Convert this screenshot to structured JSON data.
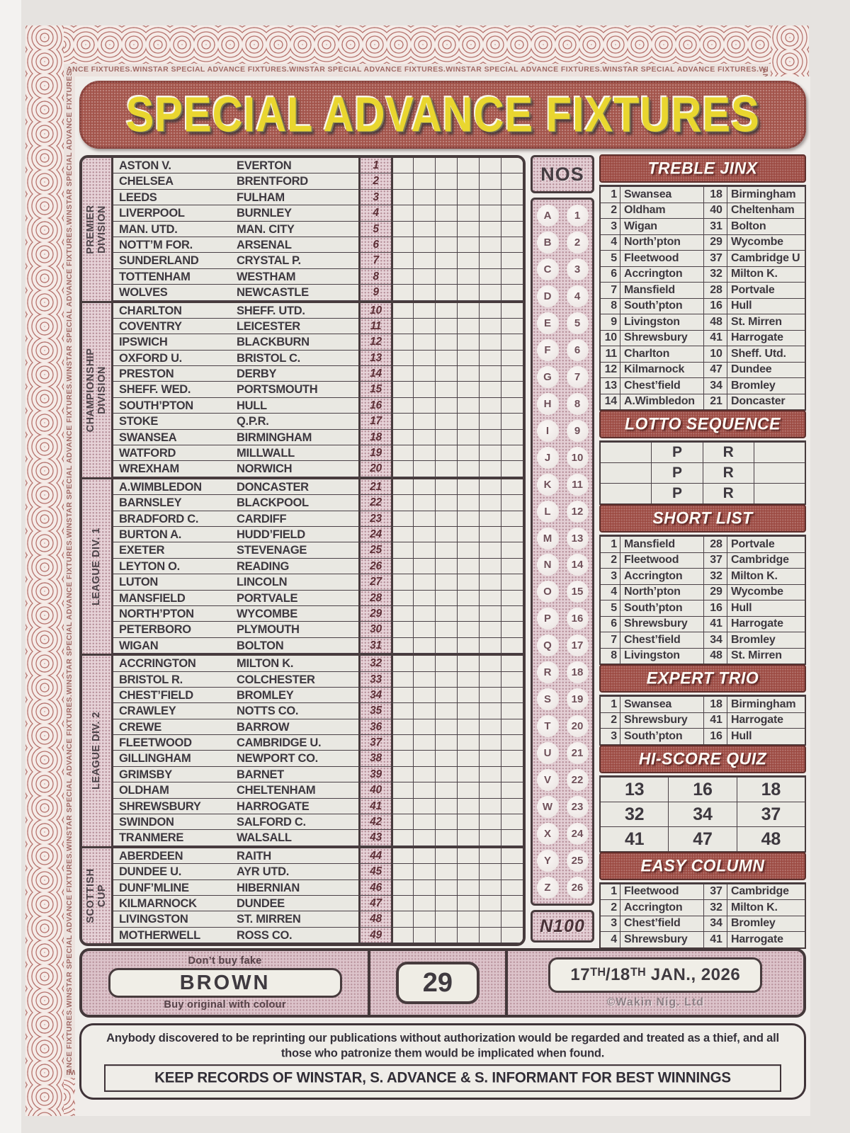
{
  "page": {
    "title": "SPECIAL ADVANCE FIXTURES",
    "border_text": "ANCE FIXTURES.WINSTAR SPECIAL ADVANCE FIXTURES.WINSTAR SPECIAL ADVANCE FIXTURES.WINSTAR SPECIAL ADVANCE FIXTURES.WINSTAR SPECIAL ADVANCE FIXTURES.WINSTAR SPECIAL ADVANCE FIXTURES.WINSTAR SPECIAL ADVANCE FIXTURES.WINSTAR SPE.IAL"
  },
  "fixtures": {
    "nos_header": "NOS",
    "coupon_code": "N100",
    "divisions": [
      {
        "label": "PREMIER\nDIVISION",
        "rows": [
          {
            "no": "1",
            "home": "ASTON V.",
            "away": "EVERTON"
          },
          {
            "no": "2",
            "home": "CHELSEA",
            "away": "BRENTFORD"
          },
          {
            "no": "3",
            "home": "LEEDS",
            "away": "FULHAM"
          },
          {
            "no": "4",
            "home": "LIVERPOOL",
            "away": "BURNLEY"
          },
          {
            "no": "5",
            "home": "MAN. UTD.",
            "away": "MAN. CITY"
          },
          {
            "no": "6",
            "home": "NOTT’M FOR.",
            "away": "ARSENAL"
          },
          {
            "no": "7",
            "home": "SUNDERLAND",
            "away": "CRYSTAL P."
          },
          {
            "no": "8",
            "home": "TOTTENHAM",
            "away": "WESTHAM"
          },
          {
            "no": "9",
            "home": "WOLVES",
            "away": "NEWCASTLE"
          }
        ]
      },
      {
        "label": "CHAMPIONSHIP\nDIVISION",
        "rows": [
          {
            "no": "10",
            "home": "CHARLTON",
            "away": "SHEFF. UTD."
          },
          {
            "no": "11",
            "home": "COVENTRY",
            "away": "LEICESTER"
          },
          {
            "no": "12",
            "home": "IPSWICH",
            "away": "BLACKBURN"
          },
          {
            "no": "13",
            "home": "OXFORD U.",
            "away": "BRISTOL C."
          },
          {
            "no": "14",
            "home": "PRESTON",
            "away": "DERBY"
          },
          {
            "no": "15",
            "home": "SHEFF. WED.",
            "away": "PORTSMOUTH"
          },
          {
            "no": "16",
            "home": "SOUTH’PTON",
            "away": "HULL"
          },
          {
            "no": "17",
            "home": "STOKE",
            "away": "Q.P.R."
          },
          {
            "no": "18",
            "home": "SWANSEA",
            "away": "BIRMINGHAM"
          },
          {
            "no": "19",
            "home": "WATFORD",
            "away": "MILLWALL"
          },
          {
            "no": "20",
            "home": "WREXHAM",
            "away": "NORWICH"
          }
        ]
      },
      {
        "label": "LEAGUE DIV. 1",
        "rows": [
          {
            "no": "21",
            "home": "A.WIMBLEDON",
            "away": "DONCASTER"
          },
          {
            "no": "22",
            "home": "BARNSLEY",
            "away": "BLACKPOOL"
          },
          {
            "no": "23",
            "home": "BRADFORD C.",
            "away": "CARDIFF"
          },
          {
            "no": "24",
            "home": "BURTON A.",
            "away": "HUDD’FIELD"
          },
          {
            "no": "25",
            "home": "EXETER",
            "away": "STEVENAGE"
          },
          {
            "no": "26",
            "home": "LEYTON O.",
            "away": "READING"
          },
          {
            "no": "27",
            "home": "LUTON",
            "away": "LINCOLN"
          },
          {
            "no": "28",
            "home": "MANSFIELD",
            "away": "PORTVALE"
          },
          {
            "no": "29",
            "home": "NORTH’PTON",
            "away": "WYCOMBE"
          },
          {
            "no": "30",
            "home": "PETERBORO",
            "away": "PLYMOUTH"
          },
          {
            "no": "31",
            "home": "WIGAN",
            "away": "BOLTON"
          }
        ]
      },
      {
        "label": "LEAGUE DIV. 2",
        "rows": [
          {
            "no": "32",
            "home": "ACCRINGTON",
            "away": "MILTON K."
          },
          {
            "no": "33",
            "home": "BRISTOL R.",
            "away": "COLCHESTER"
          },
          {
            "no": "34",
            "home": "CHEST’FIELD",
            "away": "BROMLEY"
          },
          {
            "no": "35",
            "home": "CRAWLEY",
            "away": "NOTTS CO."
          },
          {
            "no": "36",
            "home": "CREWE",
            "away": "BARROW"
          },
          {
            "no": "37",
            "home": "FLEETWOOD",
            "away": "CAMBRIDGE U."
          },
          {
            "no": "38",
            "home": "GILLINGHAM",
            "away": "NEWPORT CO."
          },
          {
            "no": "39",
            "home": "GRIMSBY",
            "away": "BARNET"
          },
          {
            "no": "40",
            "home": "OLDHAM",
            "away": "CHELTENHAM"
          },
          {
            "no": "41",
            "home": "SHREWSBURY",
            "away": "HARROGATE"
          },
          {
            "no": "42",
            "home": "SWINDON",
            "away": "SALFORD C."
          },
          {
            "no": "43",
            "home": "TRANMERE",
            "away": "WALSALL"
          }
        ]
      },
      {
        "label": "SCOTTISH\nCUP",
        "rows": [
          {
            "no": "44",
            "home": "ABERDEEN",
            "away": "RAITH"
          },
          {
            "no": "45",
            "home": "DUNDEE U.",
            "away": "AYR UTD."
          },
          {
            "no": "46",
            "home": "DUNF’MLINE",
            "away": "HIBERNIAN"
          },
          {
            "no": "47",
            "home": "KILMARNOCK",
            "away": "DUNDEE"
          },
          {
            "no": "48",
            "home": "LIVINGSTON",
            "away": "ST. MIRREN"
          },
          {
            "no": "49",
            "home": "MOTHERWELL",
            "away": "ROSS CO."
          }
        ]
      }
    ],
    "letters": [
      {
        "l": "A",
        "n": "1"
      },
      {
        "l": "B",
        "n": "2"
      },
      {
        "l": "C",
        "n": "3"
      },
      {
        "l": "D",
        "n": "4"
      },
      {
        "l": "E",
        "n": "5"
      },
      {
        "l": "F",
        "n": "6"
      },
      {
        "l": "G",
        "n": "7"
      },
      {
        "l": "H",
        "n": "8"
      },
      {
        "l": "I",
        "n": "9"
      },
      {
        "l": "J",
        "n": "10"
      },
      {
        "l": "K",
        "n": "11"
      },
      {
        "l": "L",
        "n": "12"
      },
      {
        "l": "M",
        "n": "13"
      },
      {
        "l": "N",
        "n": "14"
      },
      {
        "l": "O",
        "n": "15"
      },
      {
        "l": "P",
        "n": "16"
      },
      {
        "l": "Q",
        "n": "17"
      },
      {
        "l": "R",
        "n": "18"
      },
      {
        "l": "S",
        "n": "19"
      },
      {
        "l": "T",
        "n": "20"
      },
      {
        "l": "U",
        "n": "21"
      },
      {
        "l": "V",
        "n": "22"
      },
      {
        "l": "W",
        "n": "23"
      },
      {
        "l": "X",
        "n": "24"
      },
      {
        "l": "Y",
        "n": "25"
      },
      {
        "l": "Z",
        "n": "26"
      }
    ]
  },
  "panel": {
    "treble_jinx": {
      "title": "TREBLE JINX",
      "rows": [
        {
          "n": "1",
          "home": "Swansea",
          "x": "18",
          "away": "Birmingham"
        },
        {
          "n": "2",
          "home": "Oldham",
          "x": "40",
          "away": "Cheltenham"
        },
        {
          "n": "3",
          "home": "Wigan",
          "x": "31",
          "away": "Bolton"
        },
        {
          "n": "4",
          "home": "North’pton",
          "x": "29",
          "away": "Wycombe"
        },
        {
          "n": "5",
          "home": "Fleetwood",
          "x": "37",
          "away": "Cambridge U"
        },
        {
          "n": "6",
          "home": "Accrington",
          "x": "32",
          "away": "Milton K."
        },
        {
          "n": "7",
          "home": "Mansfield",
          "x": "28",
          "away": "Portvale"
        },
        {
          "n": "8",
          "home": "South’pton",
          "x": "16",
          "away": "Hull"
        },
        {
          "n": "9",
          "home": "Livingston",
          "x": "48",
          "away": "St. Mirren"
        },
        {
          "n": "10",
          "home": "Shrewsbury",
          "x": "41",
          "away": "Harrogate"
        },
        {
          "n": "11",
          "home": "Charlton",
          "x": "10",
          "away": "Sheff. Utd."
        },
        {
          "n": "12",
          "home": "Kilmarnock",
          "x": "47",
          "away": "Dundee"
        },
        {
          "n": "13",
          "home": "Chest’field",
          "x": "34",
          "away": "Bromley"
        },
        {
          "n": "14",
          "home": "A.Wimbledon",
          "x": "21",
          "away": "Doncaster"
        }
      ]
    },
    "lotto_sequence": {
      "title": "LOTTO SEQUENCE",
      "rows": [
        {
          "a": "",
          "p": "P",
          "r": "R",
          "b": ""
        },
        {
          "a": "",
          "p": "P",
          "r": "R",
          "b": ""
        },
        {
          "a": "",
          "p": "P",
          "r": "R",
          "b": ""
        }
      ]
    },
    "short_list": {
      "title": "SHORT LIST",
      "rows": [
        {
          "n": "1",
          "home": "Mansfield",
          "x": "28",
          "away": "Portvale"
        },
        {
          "n": "2",
          "home": "Fleetwood",
          "x": "37",
          "away": "Cambridge"
        },
        {
          "n": "3",
          "home": "Accrington",
          "x": "32",
          "away": "Milton K."
        },
        {
          "n": "4",
          "home": "North’pton",
          "x": "29",
          "away": "Wycombe"
        },
        {
          "n": "5",
          "home": "South’pton",
          "x": "16",
          "away": "Hull"
        },
        {
          "n": "6",
          "home": "Shrewsbury",
          "x": "41",
          "away": "Harrogate"
        },
        {
          "n": "7",
          "home": "Chest’field",
          "x": "34",
          "away": "Bromley"
        },
        {
          "n": "8",
          "home": "Livingston",
          "x": "48",
          "away": "St. Mirren"
        }
      ]
    },
    "expert_trio": {
      "title": "EXPERT TRIO",
      "rows": [
        {
          "n": "1",
          "home": "Swansea",
          "x": "18",
          "away": "Birmingham"
        },
        {
          "n": "2",
          "home": "Shrewsbury",
          "x": "41",
          "away": "Harrogate"
        },
        {
          "n": "3",
          "home": "South’pton",
          "x": "16",
          "away": "Hull"
        }
      ]
    },
    "hi_score_quiz": {
      "title": "HI-SCORE QUIZ",
      "rows": [
        [
          "13",
          "16",
          "18"
        ],
        [
          "32",
          "34",
          "37"
        ],
        [
          "41",
          "47",
          "48"
        ]
      ]
    },
    "easy_column": {
      "title": "EASY COLUMN",
      "rows": [
        {
          "n": "1",
          "home": "Fleetwood",
          "x": "37",
          "away": "Cambridge"
        },
        {
          "n": "2",
          "home": "Accrington",
          "x": "32",
          "away": "Milton K."
        },
        {
          "n": "3",
          "home": "Chest’field",
          "x": "34",
          "away": "Bromley"
        },
        {
          "n": "4",
          "home": "Shrewsbury",
          "x": "41",
          "away": "Harrogate"
        }
      ]
    }
  },
  "band": {
    "dont_buy_fake": "Don’t buy fake",
    "brand": "BROWN",
    "buy_original": "Buy original with colour",
    "week_number": "29",
    "date": "17ᵀᴴ/18ᵀᴴ JAN., 2026",
    "publisher": "©Wakin Nig. Ltd"
  },
  "legal": {
    "warning": "Anybody discovered to be reprinting our publications without authorization would be regarded and treated as a thief, and all those who patronize them would be implicated when found.",
    "keep_records": "KEEP RECORDS OF WINSTAR, S. ADVANCE & S. INFORMANT FOR BEST WINNINGS"
  }
}
